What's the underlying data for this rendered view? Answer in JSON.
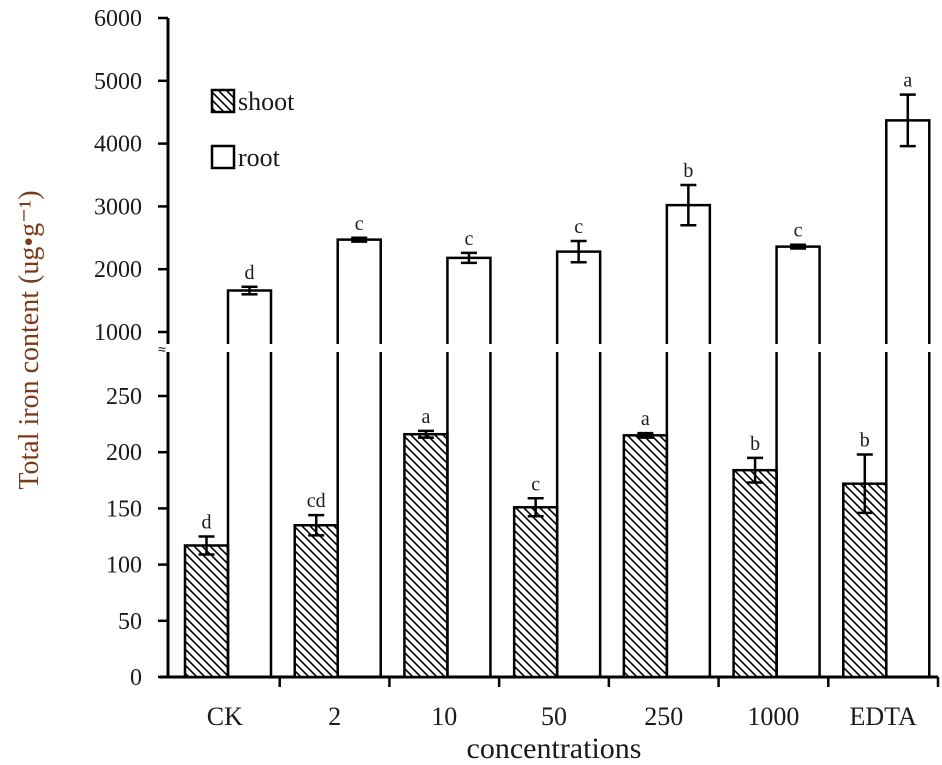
{
  "chart_data": {
    "type": "bar",
    "title": "",
    "xlabel": "concentrations",
    "ylabel": "Total iron content (ug•g⁻¹)",
    "categories": [
      "CK",
      "2",
      "10",
      "50",
      "250",
      "1000",
      "EDTA"
    ],
    "axis_break": true,
    "y_lower_ticks": [
      0,
      50,
      100,
      150,
      200,
      250
    ],
    "y_upper_ticks": [
      1000,
      2000,
      3000,
      4000,
      5000,
      6000
    ],
    "ylim_lower": [
      0,
      250
    ],
    "ylim_upper": [
      1000,
      6000
    ],
    "grid": false,
    "legend_position": "upper-left",
    "series": [
      {
        "name": "shoot",
        "pattern": "diagonal-hatch",
        "values": [
          117,
          135,
          216,
          151,
          215,
          184,
          172
        ],
        "errors": [
          8,
          9,
          3,
          8,
          2,
          11,
          26
        ],
        "significance": [
          "d",
          "cd",
          "a",
          "c",
          "a",
          "b",
          "b"
        ]
      },
      {
        "name": "root",
        "pattern": "open",
        "values": [
          1660,
          2470,
          2180,
          2280,
          3020,
          2360,
          4370
        ],
        "errors": [
          60,
          30,
          80,
          170,
          320,
          30,
          410
        ],
        "significance": [
          "d",
          "c",
          "c",
          "c",
          "b",
          "c",
          "a"
        ]
      }
    ]
  },
  "legend": {
    "items": [
      {
        "label": "shoot"
      },
      {
        "label": "root"
      }
    ]
  },
  "axes": {
    "y_title": "Total iron content (ug•g⁻¹)",
    "x_title": "concentrations"
  }
}
